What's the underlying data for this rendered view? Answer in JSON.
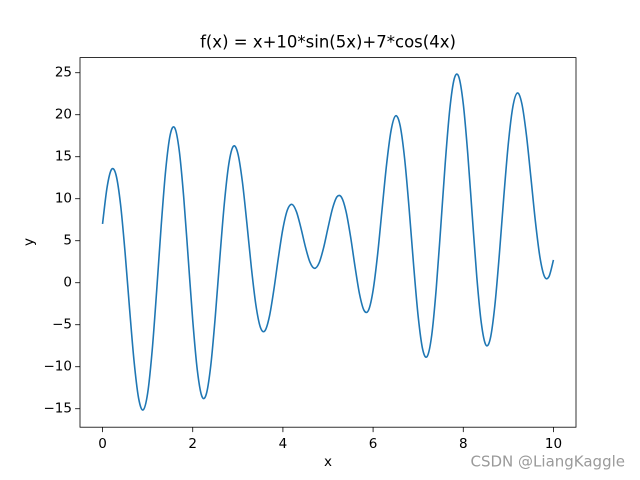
{
  "chart_data": {
    "type": "line",
    "title": "f(x) = x+10*sin(5x)+7*cos(4x)",
    "x_label": "x",
    "y_label": "y",
    "x": [
      0,
      0.1,
      0.2,
      0.3,
      0.4,
      0.5,
      0.6,
      0.7,
      0.8,
      0.9,
      1,
      1.1,
      1.2,
      1.3,
      1.4,
      1.5,
      1.6,
      1.7,
      1.8,
      1.9,
      2,
      2.1,
      2.2,
      2.3,
      2.4,
      2.5,
      2.6,
      2.7,
      2.8,
      2.9,
      3,
      3.1,
      3.2,
      3.3,
      3.4,
      3.5,
      3.6,
      3.7,
      3.8,
      3.9,
      4,
      4.1,
      4.2,
      4.3,
      4.4,
      4.5,
      4.6,
      4.7,
      4.8,
      4.9,
      5,
      5.1,
      5.2,
      5.3,
      5.4,
      5.5,
      5.6,
      5.7,
      5.8,
      5.9,
      6,
      6.1,
      6.2,
      6.3,
      6.4,
      6.5,
      6.6,
      6.7,
      6.8,
      6.9,
      7,
      7.1,
      7.2,
      7.3,
      7.4,
      7.5,
      7.6,
      7.7,
      7.8,
      7.9,
      8,
      8.1,
      8.2,
      8.3,
      8.4,
      8.5,
      8.6,
      8.7,
      8.8,
      8.9,
      9,
      9.1,
      9.2,
      9.3,
      9.4,
      9.5,
      9.6,
      9.7,
      9.8,
      9.9,
      10
    ],
    "series": [
      {
        "color": "#1f77b4",
        "values": [
          7,
          11.34,
          13.49,
          12.81,
          9.29,
          3.57,
          -3.15,
          -9.4,
          -13.76,
          -15.15,
          -13.16,
          -8.11,
          -0.98,
          6.73,
          13.4,
          17.6,
          18.45,
          15.77,
          10.18,
          2.91,
          -4.46,
          -10.33,
          -13.48,
          -13.28,
          -9.86,
          -4.04,
          2.88,
          9.38,
          14.13,
          16.24,
          15.41,
          12.07,
          7.13,
          1.82,
          -2.63,
          -5.3,
          -5.73,
          -4.03,
          -0.81,
          3,
          6.43,
          8.67,
          9.33,
          8.46,
          6.51,
          4.25,
          2.44,
          1.71,
          2.32,
          4.11,
          6.53,
          8.83,
          10.23,
          10.17,
          8.49,
          5.5,
          1.89,
          -1.37,
          -3.3,
          -3.25,
          -0.91,
          3.36,
          8.78,
          14.12,
          18.16,
          19.87,
          18.69,
          14.74,
          8.76,
          2.01,
          -4.02,
          -7.94,
          -8.77,
          -6.26,
          -0.73,
          6.6,
          14.25,
          20.6,
          24.28,
          24.52,
          21.29,
          15.32,
          7.92,
          0.68,
          -4.8,
          -7.4,
          -6.63,
          -2.73,
          3.37,
          10.32,
          16.61,
          20.96,
          22.59,
          21.29,
          17.6,
          12.51,
          7.27,
          3.05,
          0.75,
          0.72,
          2.71
        ]
      }
    ],
    "xlim": [
      -0.5,
      10.5
    ],
    "ylim": [
      -17.2,
      26.8
    ],
    "xticks": [
      0,
      2,
      4,
      6,
      8,
      10
    ],
    "yticks": [
      {
        "value": -15,
        "label": "−15"
      },
      {
        "value": -10,
        "label": "−10"
      },
      {
        "value": -5,
        "label": "−5"
      },
      0,
      5,
      10,
      15,
      20,
      25
    ],
    "watermark": "CSDN @LiangKaggle"
  }
}
